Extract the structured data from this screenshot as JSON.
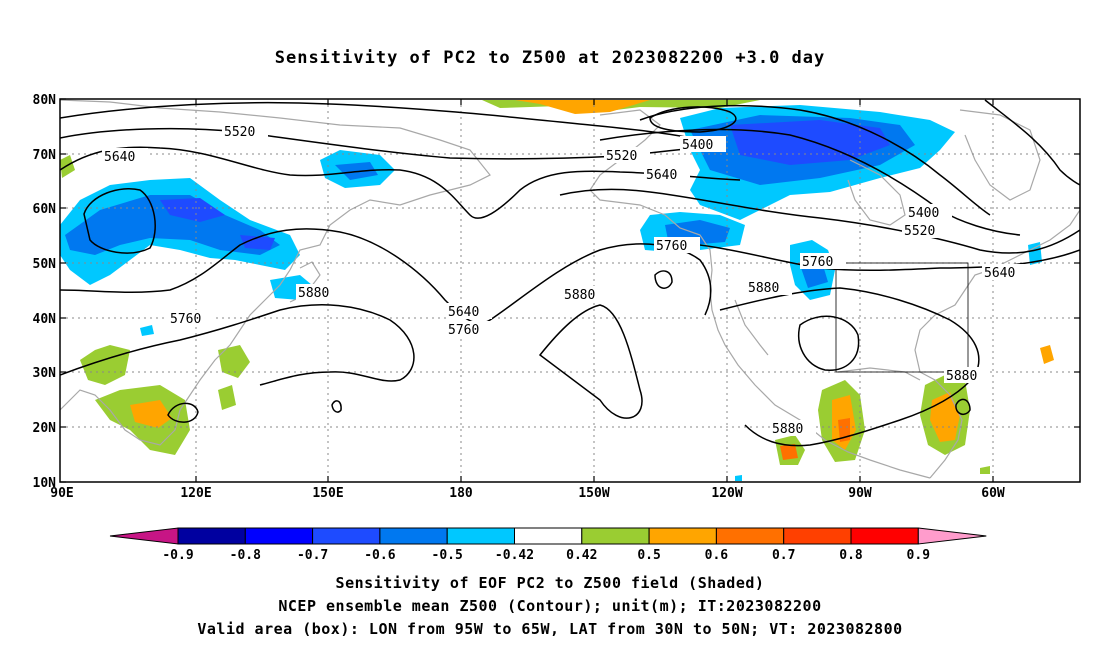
{
  "title": "Sensitivity of PC2 to Z500 at 2023082200 +3.0 day",
  "map": {
    "lat_ticks": [
      "80N",
      "70N",
      "60N",
      "50N",
      "40N",
      "30N",
      "20N",
      "10N"
    ],
    "lon_ticks": [
      "90E",
      "120E",
      "150E",
      "180",
      "150W",
      "120W",
      "90W",
      "60W"
    ],
    "contour_labels": [
      "5520",
      "5640",
      "5400",
      "5520",
      "5640",
      "5400",
      "5520",
      "5760",
      "5640",
      "5880",
      "5760",
      "5880",
      "5880",
      "5640",
      "5760",
      "5880",
      "5880",
      "5760"
    ],
    "box": {
      "lon_from": "95W",
      "lon_to": "65W",
      "lat_from": "30N",
      "lat_to": "50N"
    }
  },
  "colorbar": {
    "labels": [
      "-0.9",
      "-0.8",
      "-0.7",
      "-0.6",
      "-0.5",
      "-0.42",
      "0.42",
      "0.5",
      "0.6",
      "0.7",
      "0.8",
      "0.9"
    ],
    "colors": [
      "#0000a0",
      "#0000ff",
      "#1e4bff",
      "#0078f0",
      "#00c8ff",
      "#ffffff",
      "#9acd32",
      "#ffa500",
      "#ff7000",
      "#ff4000",
      "#ff0000"
    ],
    "low_end_color": "#c71585",
    "high_end_color": "#ff9ccc"
  },
  "captions": {
    "line1": "Sensitivity of EOF PC2 to Z500 field (Shaded)",
    "line2": "NCEP ensemble mean Z500 (Contour); unit(m); IT:2023082200",
    "line3": "Valid area (box): LON from 95W to 65W, LAT from 30N to 50N; VT: 2023082800"
  }
}
